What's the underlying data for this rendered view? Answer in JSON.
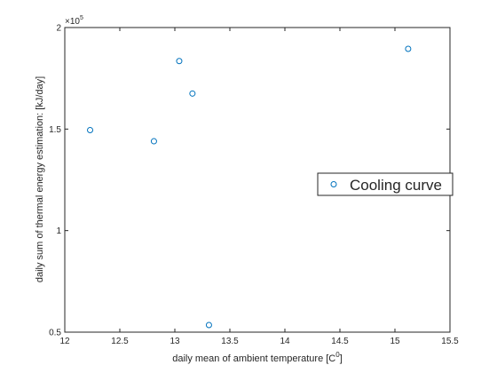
{
  "chart_data": {
    "type": "scatter",
    "title": "",
    "xlabel": "daily mean of ambient temperature [C",
    "xlabel_sup": "0",
    "xlabel_suffix": "]",
    "ylabel": "daily sum of thermal energy estimation: [kJ/day]",
    "xlim": [
      12,
      15.5
    ],
    "ylim": [
      0.5,
      2
    ],
    "y_multiplier": "×10",
    "y_multiplier_exp": "5",
    "xticks": [
      12,
      12.5,
      13,
      13.5,
      14,
      14.5,
      15,
      15.5
    ],
    "xtick_labels": [
      "12",
      "12.5",
      "13",
      "13.5",
      "14",
      "14.5",
      "15",
      "15.5"
    ],
    "yticks": [
      0.5,
      1,
      1.5,
      2
    ],
    "ytick_labels": [
      "0.5",
      "1",
      "1.5",
      "2"
    ],
    "grid": false,
    "legend_position": "right",
    "series": [
      {
        "name": "Cooling curve",
        "color": "#0072bd",
        "marker": "circle-open",
        "points": [
          {
            "x": 12.23,
            "y": 1.495
          },
          {
            "x": 12.81,
            "y": 1.44
          },
          {
            "x": 13.04,
            "y": 1.835
          },
          {
            "x": 13.16,
            "y": 1.675
          },
          {
            "x": 13.31,
            "y": 0.535
          },
          {
            "x": 15.12,
            "y": 1.895
          }
        ]
      }
    ]
  }
}
